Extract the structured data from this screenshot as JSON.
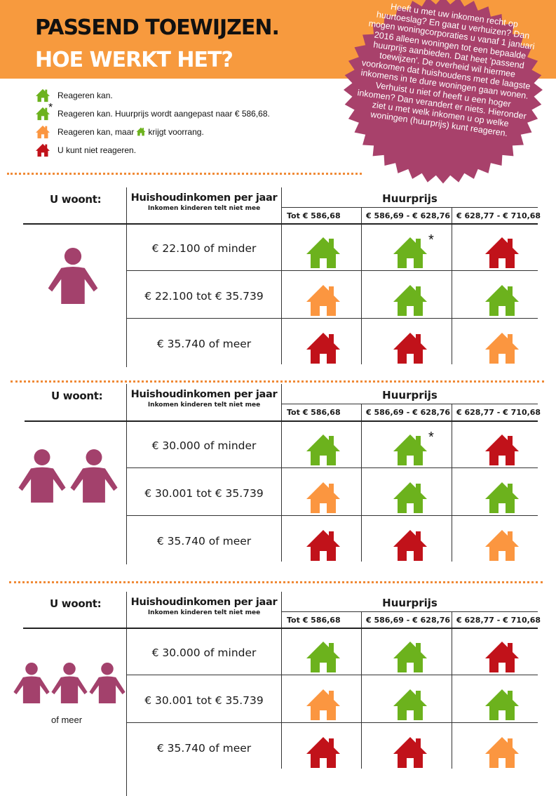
{
  "colors": {
    "header_bg": "#f79a3e",
    "seal": "#a8416b",
    "green": "#6cb21d",
    "orange": "#fb9640",
    "red": "#c1121a",
    "person": "#a3416c",
    "dots": "#f08a36"
  },
  "header": {
    "title_line1": "PASSEND TOEWIJZEN.",
    "title_line2": "HOE WERKT HET?"
  },
  "intro_text": "Heeft u met uw inkomen recht op huurtoeslag? En gaat u verhuizen? Dan mogen woningcorporaties u vanaf 1 januari 2016 alleen woningen tot een bepaalde huurprijs aanbieden. Dat heet 'passend toewijzen'. De overheid wil hiermee voorkomen dat huishoudens met de laagste inkomens in te dure woningen gaan wonen. Verhuist u niet of heeft u een hoger inkomen? Dan verandert er niets. Hieronder ziet u met welk inkomen u op welke woningen (huurprijs) kunt reageren.",
  "legend": [
    {
      "icon": "green-house",
      "label": "Reageren kan."
    },
    {
      "icon": "green-house-star",
      "star": "*",
      "label": "Reageren kan. Huurprijs wordt aangepast naar € 586,68."
    },
    {
      "icon": "orange-house",
      "label_before": "Reageren kan, maar",
      "label_after": "krijgt voorrang."
    },
    {
      "icon": "red-house",
      "label": "U kunt niet reageren."
    }
  ],
  "table_labels": {
    "u_woont": "U woont:",
    "income_header": "Huishoudinkomen per jaar",
    "income_sub": "Inkomen kinderen telt niet mee",
    "rent_header": "Huurprijs",
    "rent_cols": [
      "Tot € 586,68",
      "€ 586,69 - € 628,76",
      "€ 628,77 - € 710,68"
    ]
  },
  "sections": [
    {
      "household": "one-person",
      "rows": [
        {
          "income": "€ 22.100 of minder",
          "cells": [
            "green",
            "green-star",
            "red"
          ]
        },
        {
          "income": "€ 22.100 tot € 35.739",
          "cells": [
            "orange",
            "green",
            "green"
          ]
        },
        {
          "income": "€ 35.740 of meer",
          "cells": [
            "red",
            "red",
            "orange"
          ]
        }
      ]
    },
    {
      "household": "two-persons",
      "rows": [
        {
          "income": "€ 30.000 of minder",
          "cells": [
            "green",
            "green-star",
            "red"
          ]
        },
        {
          "income": "€ 30.001 tot € 35.739",
          "cells": [
            "orange",
            "green",
            "green"
          ]
        },
        {
          "income": "€ 35.740 of meer",
          "cells": [
            "red",
            "red",
            "orange"
          ]
        }
      ]
    },
    {
      "household": "three-or-more-persons",
      "household_label": "of meer",
      "rows": [
        {
          "income": "€ 30.000 of minder",
          "cells": [
            "green",
            "green",
            "red"
          ]
        },
        {
          "income": "€ 30.001 tot € 35.739",
          "cells": [
            "orange",
            "green",
            "green"
          ]
        },
        {
          "income": "€ 35.740 of meer",
          "cells": [
            "red",
            "red",
            "orange"
          ]
        }
      ]
    }
  ]
}
